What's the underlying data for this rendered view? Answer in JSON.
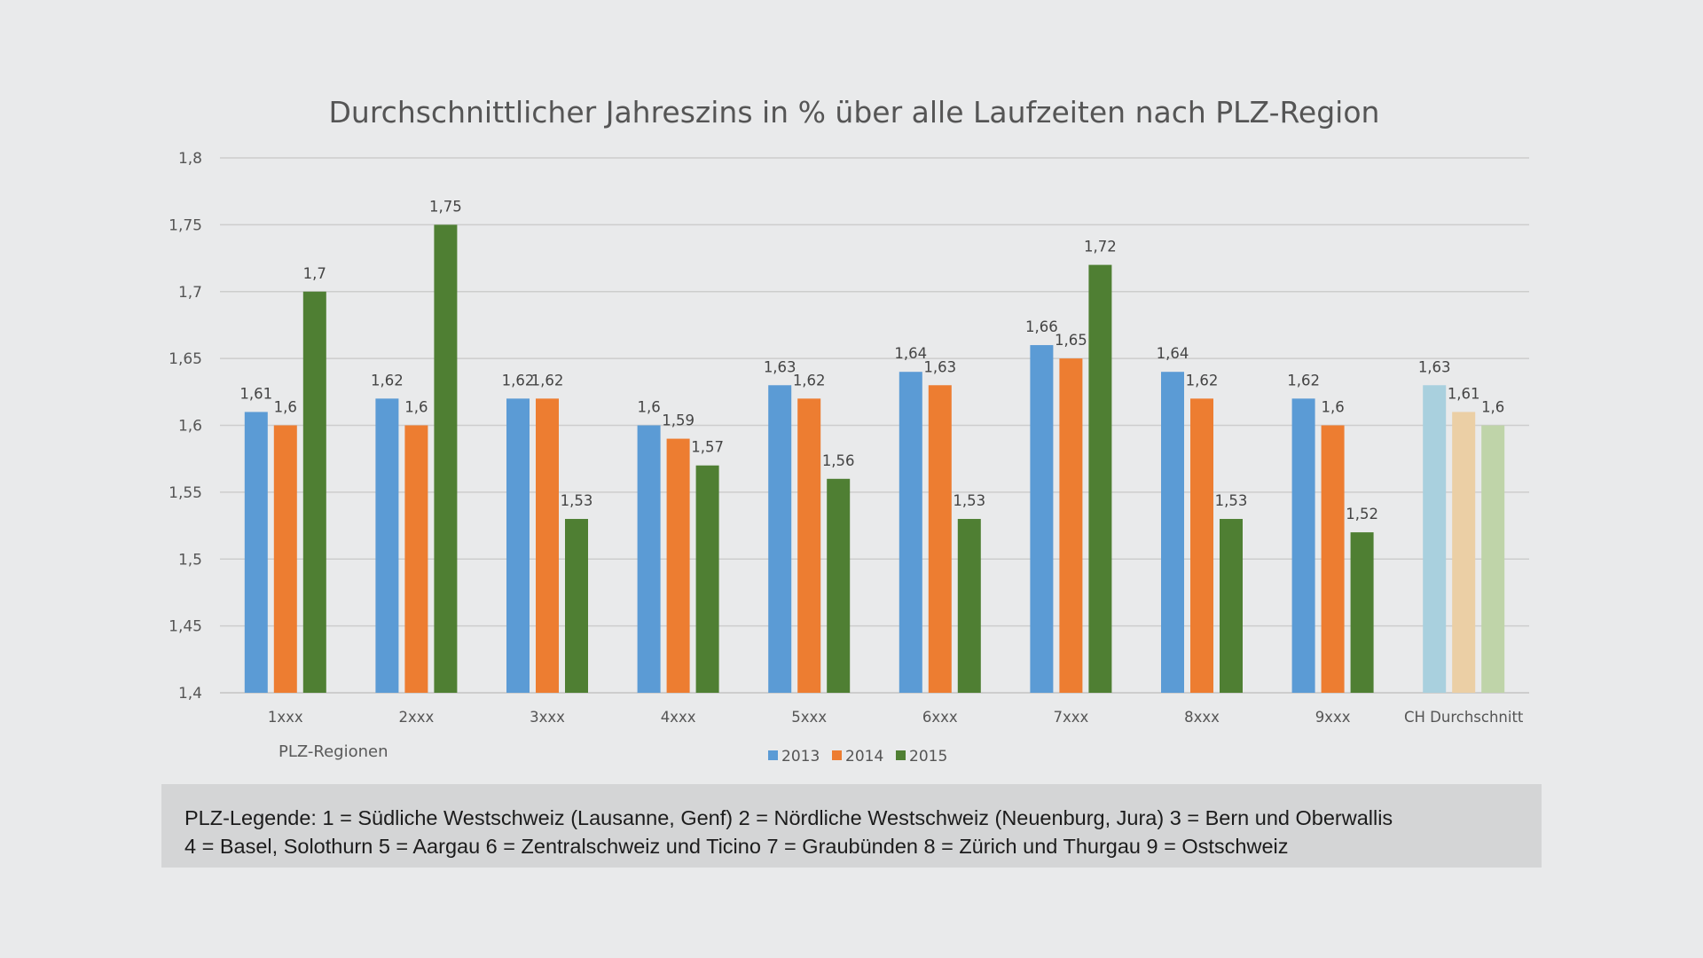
{
  "chart_data": {
    "type": "bar",
    "title": "Durchschnittlicher Jahreszins in % über alle Laufzeiten nach PLZ-Region",
    "xlabel": "PLZ-Regionen",
    "ylabel": "",
    "ylim": [
      1.4,
      1.8
    ],
    "yticks": [
      1.4,
      1.45,
      1.5,
      1.55,
      1.6,
      1.65,
      1.7,
      1.75,
      1.8
    ],
    "ytick_labels": [
      "1,4",
      "1,45",
      "1,5",
      "1,55",
      "1,6",
      "1,65",
      "1,7",
      "1,75",
      "1,8"
    ],
    "grid": true,
    "legend_position": "bottom-center",
    "categories": [
      "1xxx",
      "2xxx",
      "3xxx",
      "4xxx",
      "5xxx",
      "6xxx",
      "7xxx",
      "8xxx",
      "9xxx",
      "CH Durchschnitt"
    ],
    "series": [
      {
        "name": "2013",
        "color": "#5b9bd5",
        "highlight_color": "#a9d0de",
        "values": [
          1.61,
          1.62,
          1.62,
          1.6,
          1.63,
          1.64,
          1.66,
          1.64,
          1.62,
          1.63
        ],
        "labels": [
          "1,61",
          "1,62",
          "1,62",
          "1,6",
          "1,63",
          "1,64",
          "1,66",
          "1,64",
          "1,62",
          "1,63"
        ]
      },
      {
        "name": "2014",
        "color": "#ed7d31",
        "highlight_color": "#ebcfa5",
        "values": [
          1.6,
          1.6,
          1.62,
          1.59,
          1.62,
          1.63,
          1.65,
          1.62,
          1.6,
          1.61
        ],
        "labels": [
          "1,6",
          "1,6",
          "1,62",
          "1,59",
          "1,62",
          "1,63",
          "1,65",
          "1,62",
          "1,6",
          "1,61"
        ]
      },
      {
        "name": "2015",
        "color": "#4f7f33",
        "highlight_color": "#bfd4a9",
        "values": [
          1.7,
          1.75,
          1.53,
          1.57,
          1.56,
          1.53,
          1.72,
          1.53,
          1.52,
          1.6
        ],
        "labels": [
          "1,7",
          "1,75",
          "1,53",
          "1,57",
          "1,56",
          "1,53",
          "1,72",
          "1,53",
          "1,52",
          "1,6"
        ]
      }
    ],
    "highlight_category": "CH Durchschnitt"
  },
  "plz_legend": {
    "line1": "PLZ-Legende: 1 = Südliche Westschweiz (Lausanne, Genf) 2 = Nördliche Westschweiz (Neuenburg, Jura) 3 = Bern und Oberwallis",
    "line2": "4 = Basel, Solothurn 5 = Aargau 6 = Zentralschweiz und Ticino 7 = Graubünden 8 = Zürich und Thurgau 9 = Ostschweiz"
  },
  "colors": {
    "background": "#e9eaeb",
    "legend_box": "#d4d5d6",
    "gridline": "#cdcdcd",
    "axis_text": "#555555"
  }
}
